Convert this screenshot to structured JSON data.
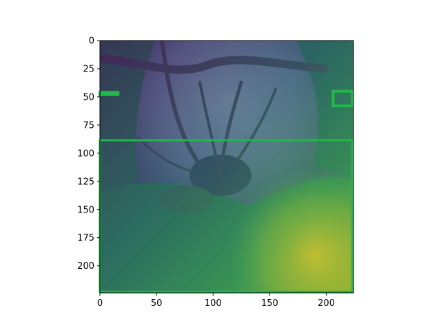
{
  "figure": {
    "image_description_icon": "forest-canopy-heatmap-overlay",
    "x_ticks": [
      "0",
      "50",
      "100",
      "150",
      "200"
    ],
    "y_ticks": [
      "0",
      "25",
      "50",
      "75",
      "100",
      "125",
      "150",
      "175",
      "200"
    ],
    "x_tick_values": [
      0,
      50,
      100,
      150,
      200
    ],
    "y_tick_values": [
      0,
      25,
      50,
      75,
      100,
      125,
      150,
      175,
      200
    ],
    "x_range": [
      0,
      224
    ],
    "y_range": [
      224,
      0
    ],
    "overlay_colormap": "viridis",
    "box_color": "#21b84a",
    "boxes": [
      {
        "x0": 0,
        "y0": 88.5,
        "x1": 223,
        "y1": 223
      },
      {
        "x0": 206,
        "y0": 45,
        "x1": 223,
        "y1": 58
      },
      {
        "x0": 0,
        "y0": 46,
        "x1": 16,
        "y1": 48
      }
    ]
  }
}
